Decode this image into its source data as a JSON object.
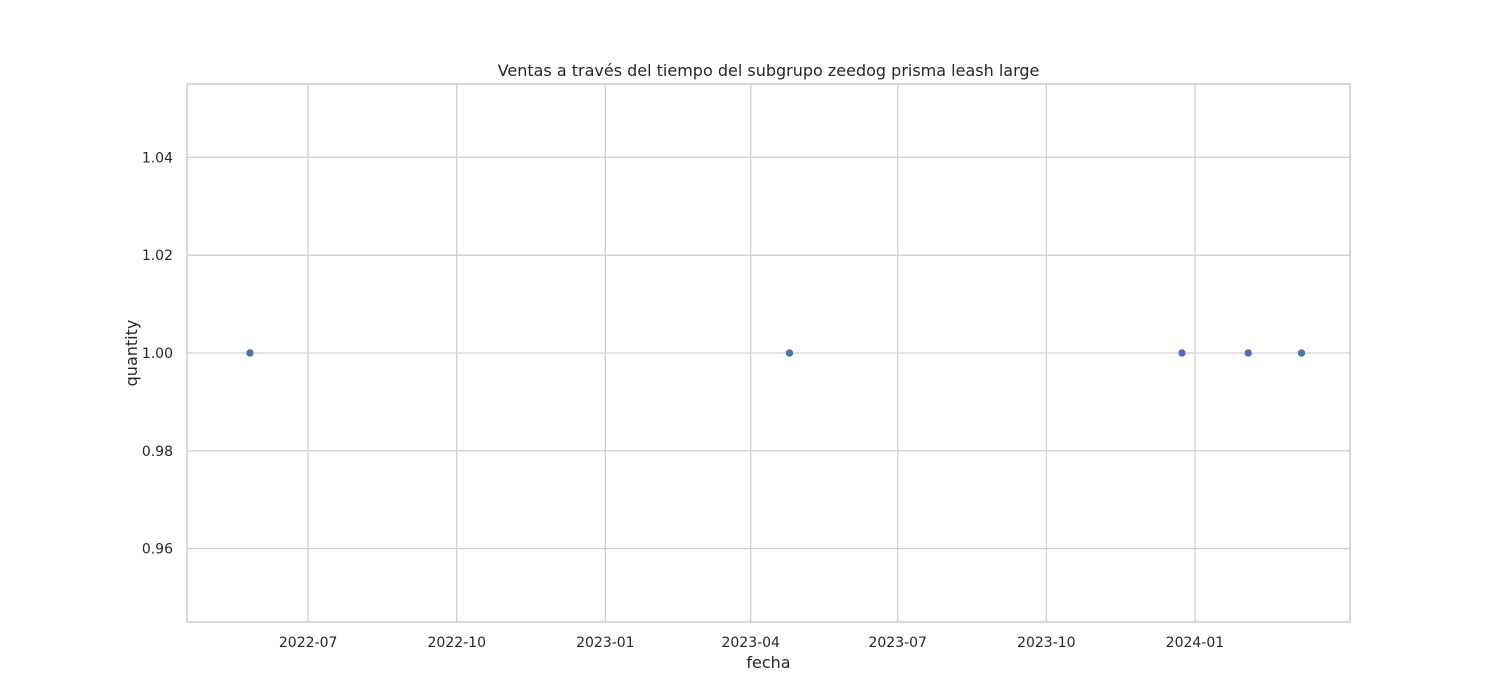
{
  "chart_data": {
    "type": "scatter",
    "title": "Ventas a través del tiempo del subgrupo zeedog prisma leash large",
    "xlabel": "fecha",
    "ylabel": "quantity",
    "x_type": "date",
    "xlim": [
      "2022-04-17",
      "2024-04-06"
    ],
    "ylim": [
      0.945,
      1.055
    ],
    "x_ticks": [
      "2022-07-01",
      "2022-10-01",
      "2023-01-01",
      "2023-04-01",
      "2023-07-01",
      "2023-10-01",
      "2024-01-01"
    ],
    "x_tick_labels": [
      "2022-07",
      "2022-10",
      "2023-01",
      "2023-04",
      "2023-07",
      "2023-10",
      "2024-01"
    ],
    "y_ticks": [
      0.96,
      0.98,
      1.0,
      1.02,
      1.04
    ],
    "y_tick_labels": [
      "0.96",
      "0.98",
      "1.00",
      "1.02",
      "1.04"
    ],
    "grid": true,
    "series": [
      {
        "color": "#4c72b0",
        "points": [
          {
            "x": "2022-05-26",
            "y": 1.0
          },
          {
            "x": "2023-04-25",
            "y": 1.0
          },
          {
            "x": "2023-12-24",
            "y": 1.0
          },
          {
            "x": "2024-02-03",
            "y": 1.0
          },
          {
            "x": "2024-03-07",
            "y": 1.0
          }
        ]
      }
    ]
  }
}
